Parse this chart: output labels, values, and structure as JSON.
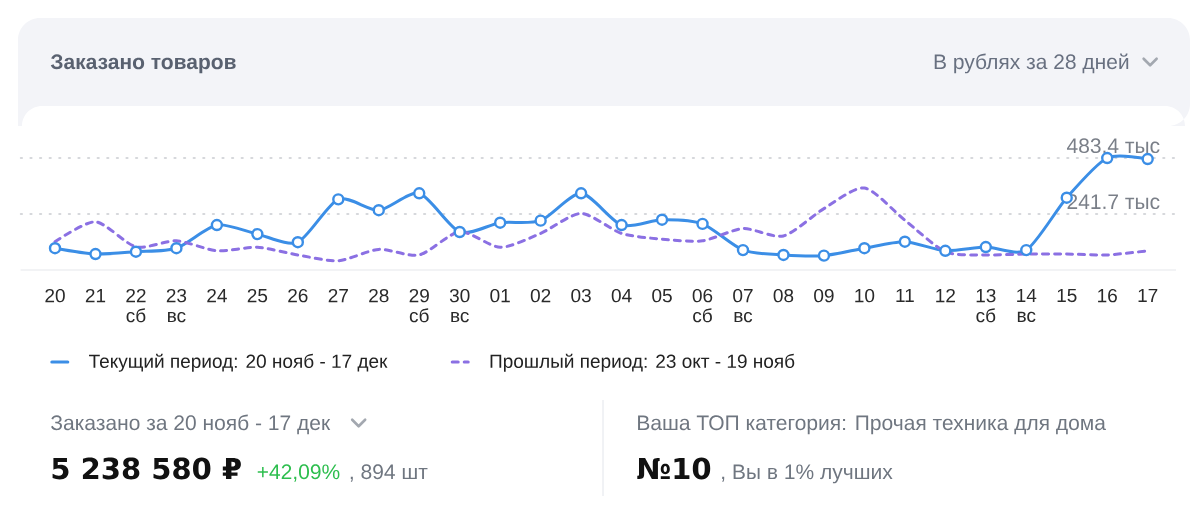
{
  "chart_data": {
    "type": "line",
    "title": "Заказано товаров",
    "subtitle": "В рублях за 28 дней",
    "categories": [
      "20",
      "21",
      "22 сб",
      "23 вс",
      "24",
      "25",
      "26",
      "27",
      "28",
      "29 сб",
      "30 вс",
      "01",
      "02",
      "03",
      "04",
      "05",
      "06 сб",
      "07 вс",
      "08",
      "09",
      "10",
      "11",
      "12",
      "13 сб",
      "14 вс",
      "15",
      "16",
      "17"
    ],
    "series": [
      {
        "name": "Текущий период: 20 нояб - 17 дек",
        "color": "#3b8ee6",
        "marker": "circle",
        "line_style": "solid",
        "values": [
          94,
          69,
          79,
          94,
          194,
          155,
          120,
          305,
          258,
          331,
          164,
          204,
          213,
          331,
          194,
          217,
          199,
          86,
          65,
          62,
          94,
          122,
          83,
          99,
          86,
          312,
          483.4,
          479
        ]
      },
      {
        "name": "Прошлый период: 23 окт - 19 нояб",
        "color": "#8b70e3",
        "marker": "none",
        "line_style": "dashed",
        "values": [
          122,
          208,
          100,
          126,
          83,
          98,
          65,
          40,
          89,
          65,
          165,
          98,
          158,
          244,
          158,
          133,
          126,
          179,
          147,
          265,
          354,
          215,
          79,
          65,
          69,
          69,
          65,
          83
        ]
      }
    ],
    "ylim": [
      0,
      483.4
    ],
    "yticks": [
      {
        "value": 241.7,
        "label": "241.7 тыс"
      },
      {
        "value": 483.4,
        "label": "483.4 тыс"
      }
    ],
    "grid": "y",
    "legend": "bottom",
    "annotations": [
      "Заказано за 20 нояб - 17 дек",
      "5 238 580 ₽",
      "+42,09%",
      ", 894 шт",
      "Ваша ТОП категория: Прочая техника для дома",
      "№10",
      ", Вы в 1% лучших"
    ]
  }
}
